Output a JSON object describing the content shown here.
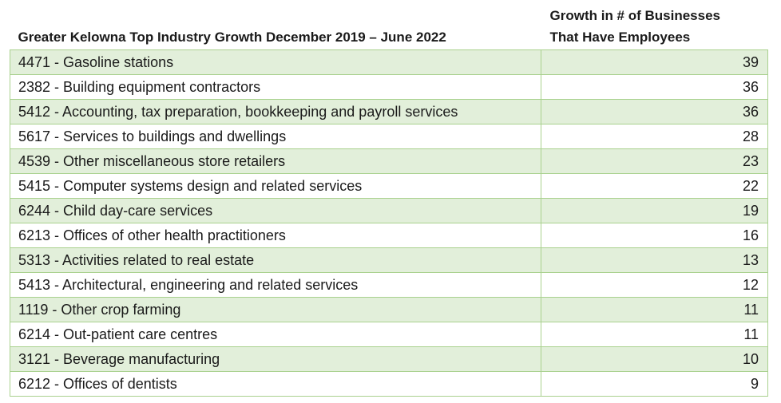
{
  "table": {
    "headers": [
      "Greater Kelowna Top Industry Growth December 2019 – June 2022",
      "Growth in # of Businesses That Have Employees"
    ],
    "header_line2_split": [
      "Growth in # of Businesses",
      "That Have Employees"
    ],
    "rows": [
      {
        "industry": "4471 - Gasoline stations",
        "growth": "39"
      },
      {
        "industry": "2382 - Building equipment contractors",
        "growth": "36"
      },
      {
        "industry": "5412 - Accounting, tax preparation, bookkeeping and payroll services",
        "growth": "36"
      },
      {
        "industry": "5617 - Services to buildings and dwellings",
        "growth": "28"
      },
      {
        "industry": "4539 - Other miscellaneous store retailers",
        "growth": "23"
      },
      {
        "industry": "5415 - Computer systems design and related services",
        "growth": "22"
      },
      {
        "industry": "6244 - Child day-care services",
        "growth": "19"
      },
      {
        "industry": "6213 - Offices of other health practitioners",
        "growth": "16"
      },
      {
        "industry": "5313 - Activities related to real estate",
        "growth": "13"
      },
      {
        "industry": "5413 - Architectural, engineering and related services",
        "growth": "12"
      },
      {
        "industry": "1119 - Other crop farming",
        "growth": "11"
      },
      {
        "industry": "6214 - Out-patient care centres",
        "growth": "11"
      },
      {
        "industry": "3121 - Beverage manufacturing",
        "growth": "10"
      },
      {
        "industry": "6212 - Offices of dentists",
        "growth": "9"
      }
    ]
  },
  "colors": {
    "band": "#e2efda",
    "border": "#a9d18e"
  }
}
